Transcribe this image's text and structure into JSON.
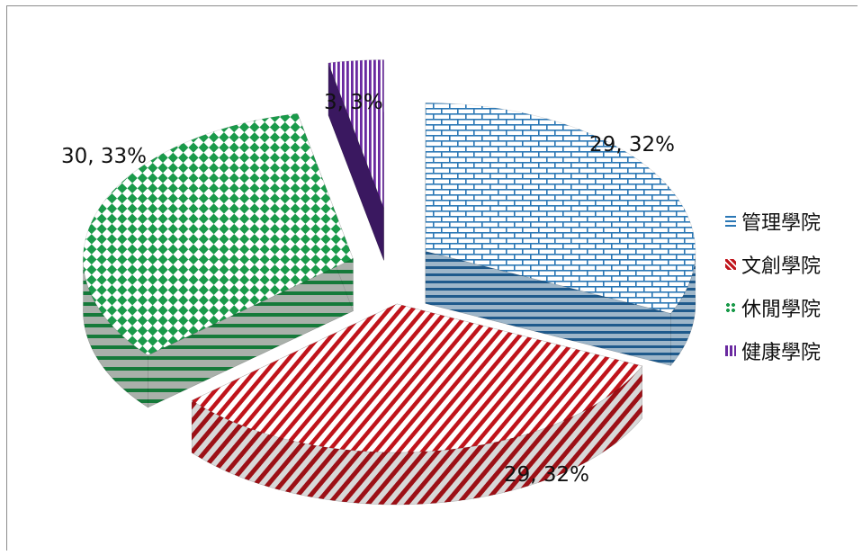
{
  "chart_data": {
    "type": "pie",
    "title": "",
    "slices": [
      {
        "name": "管理學院",
        "value": 29,
        "percent": "32%",
        "label": "29, 32%",
        "color": "#2a77b5"
      },
      {
        "name": "文創學院",
        "value": 29,
        "percent": "32%",
        "label": "29, 32%",
        "color": "#c0141b"
      },
      {
        "name": "休閒學院",
        "value": 30,
        "percent": "33%",
        "label": "30, 33%",
        "color": "#1a9a4a"
      },
      {
        "name": "健康學院",
        "value": 3,
        "percent": "3%",
        "label": "3, 3%",
        "color": "#6a2aa0"
      }
    ],
    "legend": "right",
    "style": "exploded-3d"
  }
}
